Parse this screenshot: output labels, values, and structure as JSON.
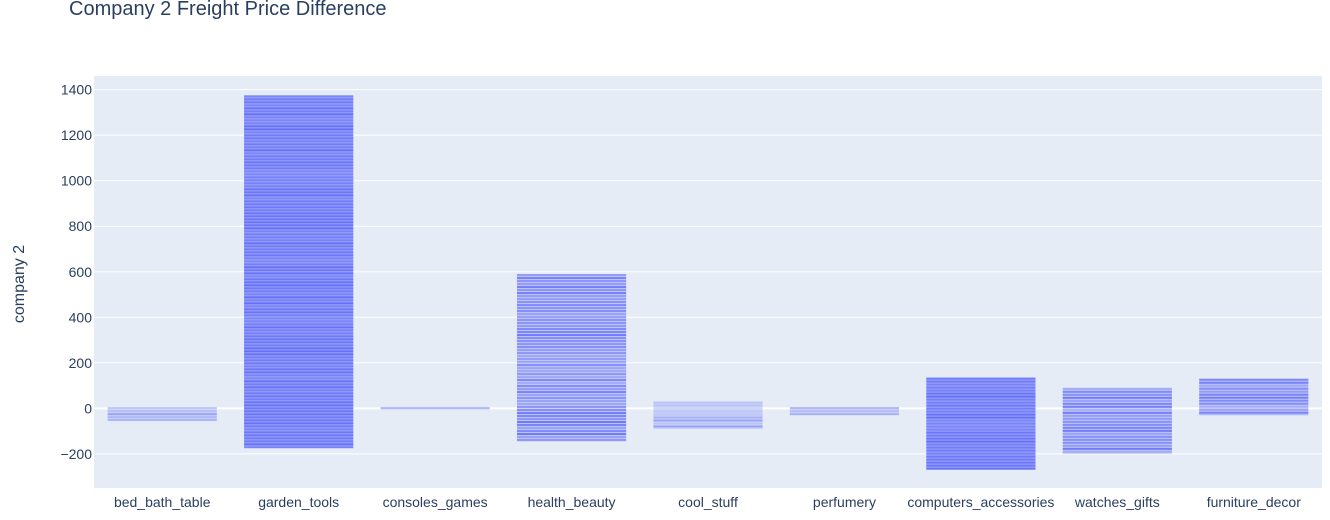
{
  "chart_data": {
    "type": "bar",
    "title": "Company 2 Freight Price Difference",
    "xlabel": "",
    "ylabel": "company 2",
    "ylim": [
      -350,
      1460
    ],
    "yticks": [
      -200,
      0,
      200,
      400,
      600,
      800,
      1000,
      1200,
      1400
    ],
    "ytick_labels": [
      "−200",
      "0",
      "200",
      "400",
      "600",
      "800",
      "1000",
      "1200",
      "1400"
    ],
    "grid": true,
    "colors": {
      "bar": "#636efa",
      "plot_bg": "#e5ecf6",
      "text": "#2a3f5f",
      "grid": "#ffffff"
    },
    "categories": [
      "bed_bath_table",
      "garden_tools",
      "consoles_games",
      "health_beauty",
      "cool_stuff",
      "perfumery",
      "computers_accessories",
      "watches_gifts",
      "furniture_decor"
    ],
    "ranges": [
      {
        "category": "bed_bath_table",
        "min": -55,
        "max": 5,
        "density": "light"
      },
      {
        "category": "garden_tools",
        "min": -175,
        "max": 1375,
        "density": "dense"
      },
      {
        "category": "consoles_games",
        "min": -5,
        "max": 5,
        "density": "light"
      },
      {
        "category": "health_beauty",
        "min": -145,
        "max": 590,
        "density": "medium"
      },
      {
        "category": "cool_stuff",
        "min": -90,
        "max": 30,
        "density": "light"
      },
      {
        "category": "perfumery",
        "min": -30,
        "max": 5,
        "density": "light"
      },
      {
        "category": "computers_accessories",
        "min": -270,
        "max": 135,
        "density": "dense"
      },
      {
        "category": "watches_gifts",
        "min": -200,
        "max": 90,
        "density": "medium"
      },
      {
        "category": "furniture_decor",
        "min": -30,
        "max": 130,
        "density": "medium"
      }
    ]
  }
}
